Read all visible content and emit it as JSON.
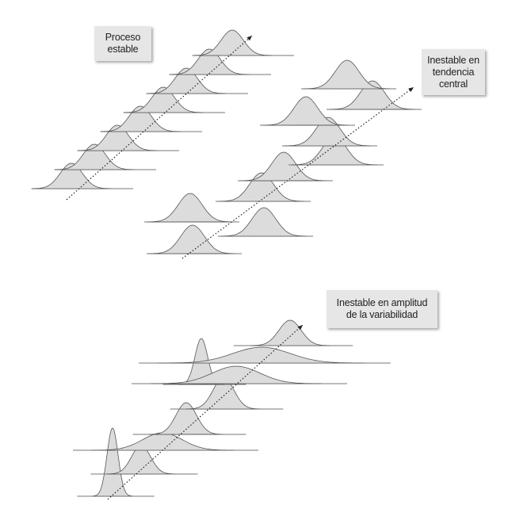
{
  "labels": {
    "stable": {
      "line1": "Proceso",
      "line2": "estable"
    },
    "central": {
      "line1": "Inestable en",
      "line2": "tendencia",
      "line3": "central"
    },
    "variability": {
      "line1": "Inestable en amplitud",
      "line2": "de la variabilidad"
    }
  },
  "colors": {
    "curve_fill": "#dcdcdc",
    "curve_stroke": "#555555",
    "baseline": "#777777",
    "box_fill": "#e6e6e6"
  }
}
